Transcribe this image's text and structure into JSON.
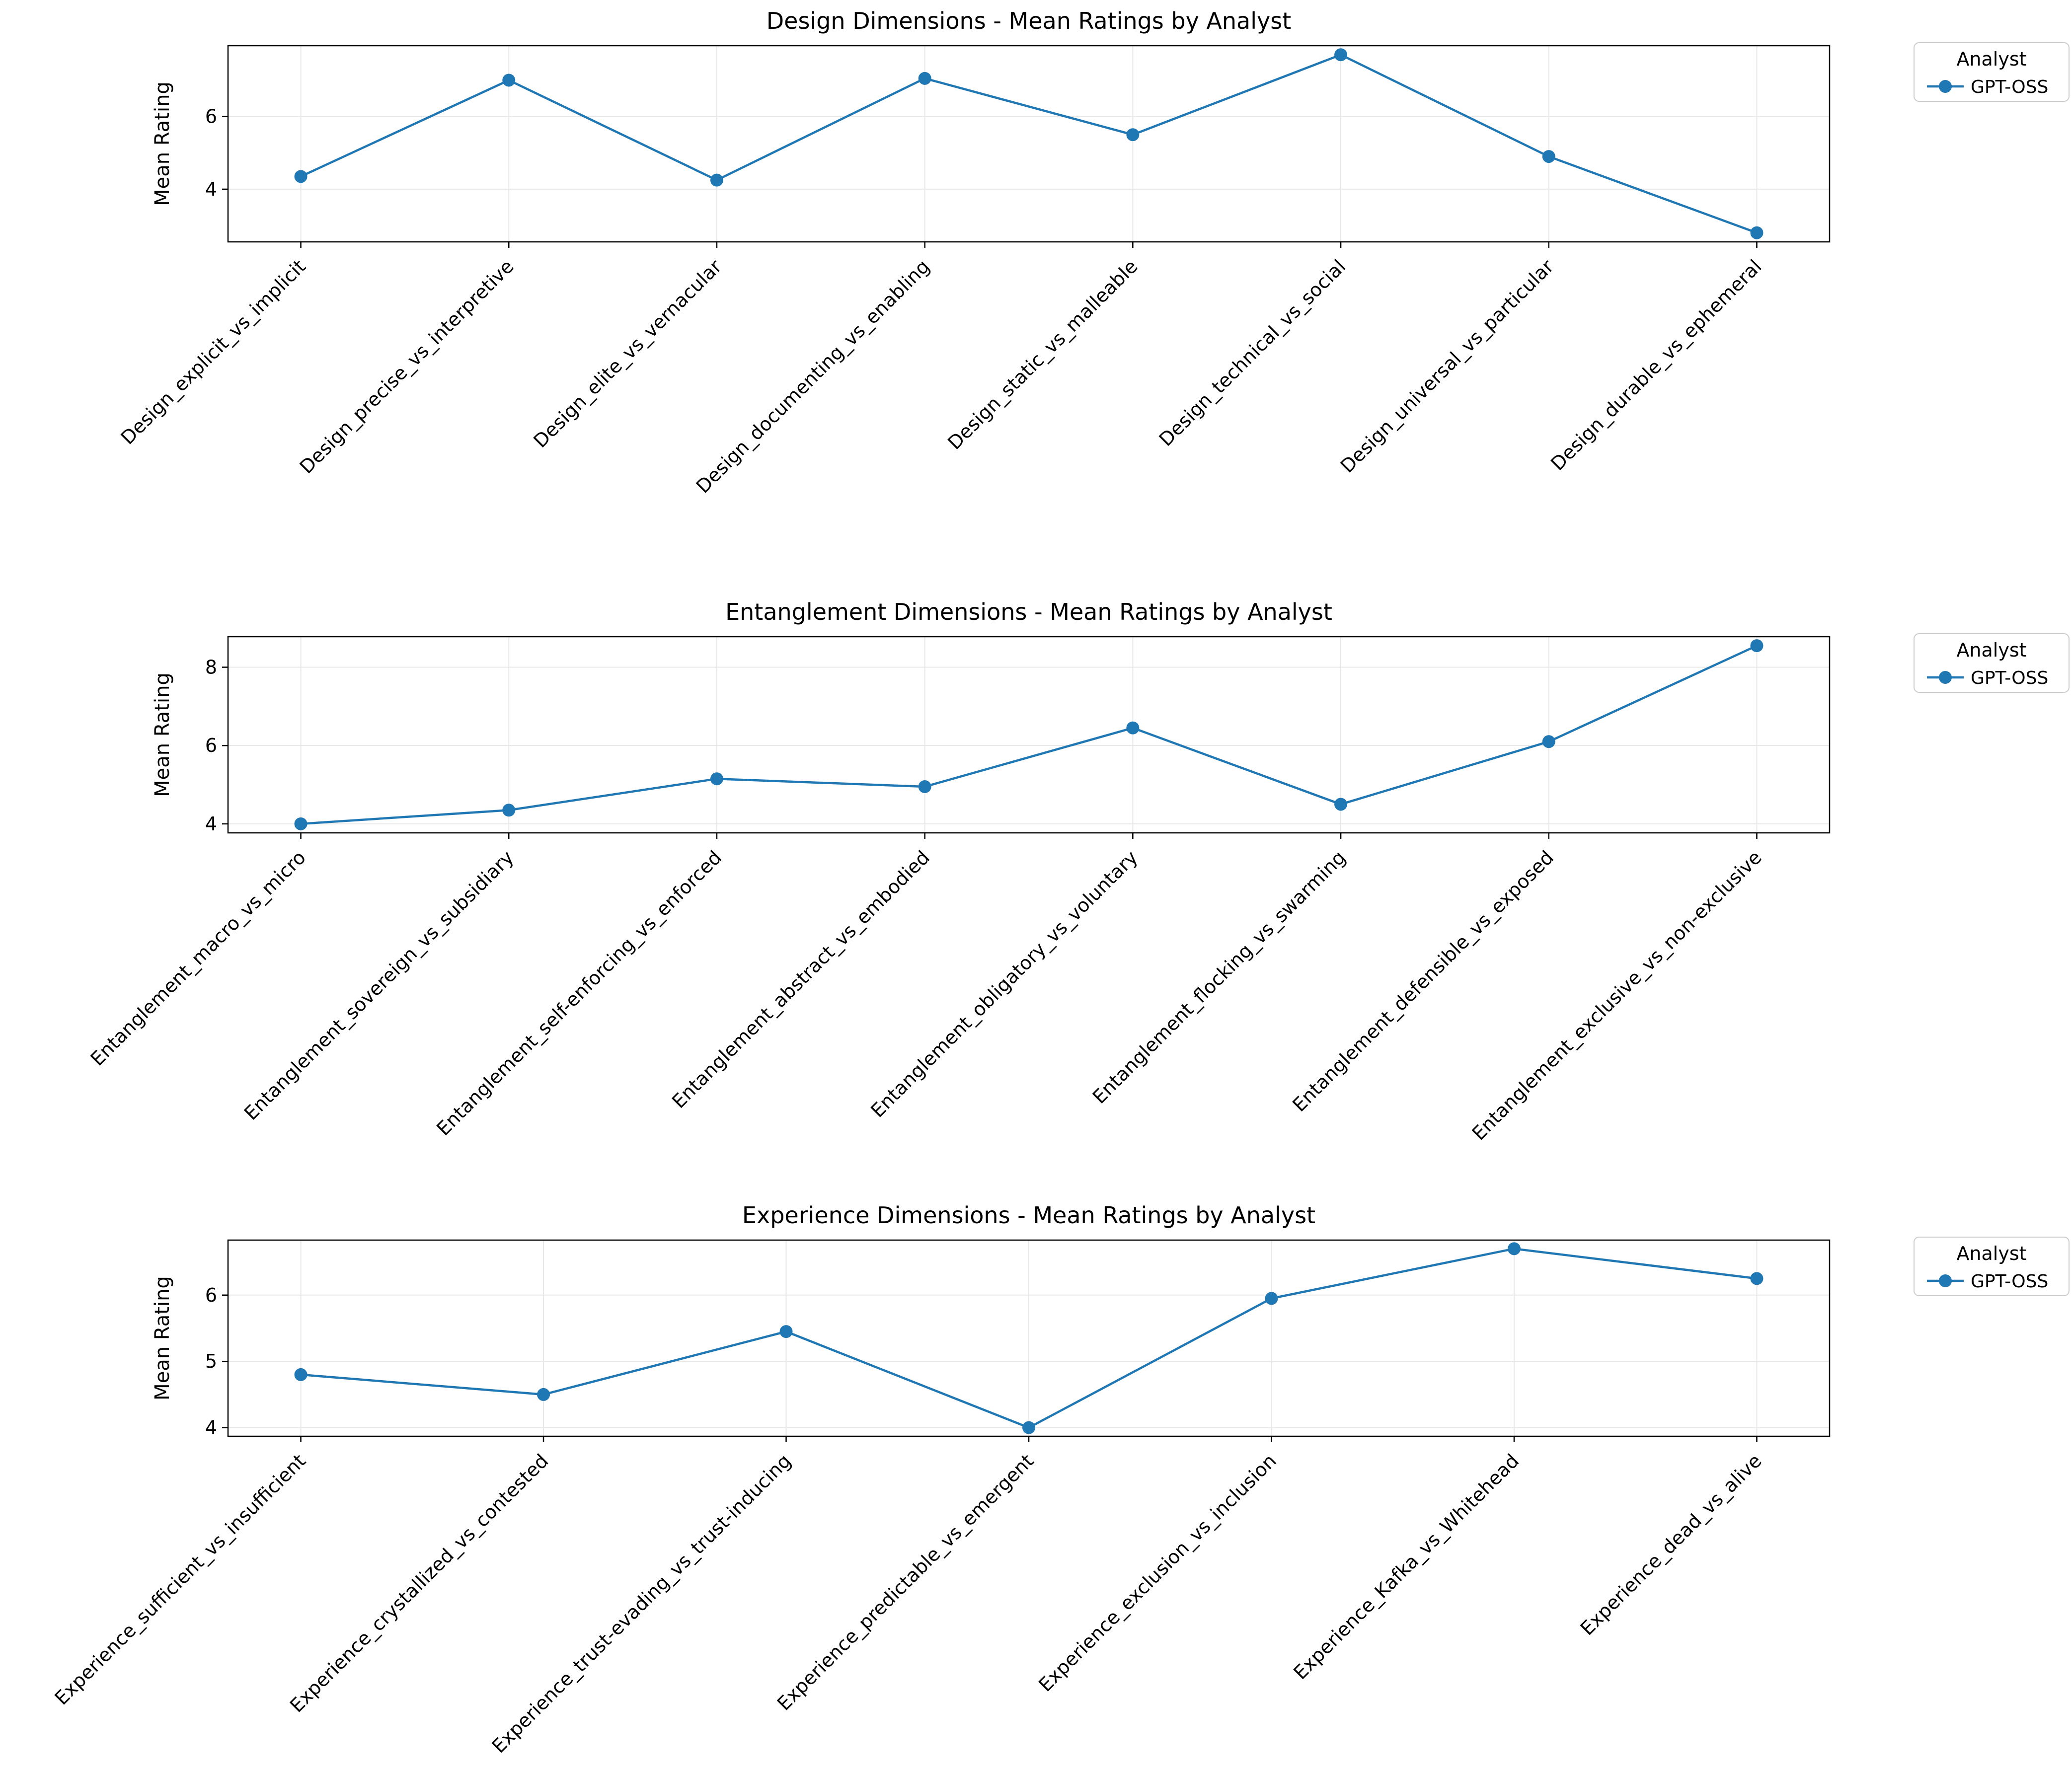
{
  "figure": {
    "background_color": "#ffffff",
    "accent_color": "#1f77b4"
  },
  "chart_data": [
    {
      "type": "line",
      "title": "Design Dimensions - Mean Ratings by Analyst",
      "ylabel": "Mean Rating",
      "legend_title": "Analyst",
      "legend_position": "upper right, outside axes",
      "grid": true,
      "categories": [
        "Design_explicit_vs_implicit",
        "Design_precise_vs_interpretive",
        "Design_elite_vs_vernacular",
        "Design_documenting_vs_enabling",
        "Design_static_vs_malleable",
        "Design_technical_vs_social",
        "Design_universal_vs_particular",
        "Design_durable_vs_ephemeral"
      ],
      "series": [
        {
          "name": "GPT-OSS",
          "color": "#1f77b4",
          "marker": "circle",
          "values": [
            4.35,
            7.0,
            4.25,
            7.05,
            5.5,
            7.7,
            4.9,
            2.8
          ]
        }
      ],
      "ylim": [
        2.55,
        7.95
      ],
      "yticks": [
        4,
        6
      ]
    },
    {
      "type": "line",
      "title": "Entanglement Dimensions - Mean Ratings by Analyst",
      "ylabel": "Mean Rating",
      "legend_title": "Analyst",
      "legend_position": "upper right, outside axes",
      "grid": true,
      "categories": [
        "Entanglement_macro_vs_micro",
        "Entanglement_sovereign_vs_subsidiary",
        "Entanglement_self-enforcing_vs_enforced",
        "Entanglement_abstract_vs_embodied",
        "Entanglement_obligatory_vs_voluntary",
        "Entanglement_flocking_vs_swarming",
        "Entanglement_defensible_vs_exposed",
        "Entanglement_exclusive_vs_non-exclusive"
      ],
      "series": [
        {
          "name": "GPT-OSS",
          "color": "#1f77b4",
          "marker": "circle",
          "values": [
            4.0,
            4.35,
            5.15,
            4.95,
            6.45,
            4.5,
            6.1,
            8.55
          ]
        }
      ],
      "ylim": [
        3.77,
        8.78
      ],
      "yticks": [
        4,
        6,
        8
      ]
    },
    {
      "type": "line",
      "title": "Experience Dimensions - Mean Ratings by Analyst",
      "ylabel": "Mean Rating",
      "legend_title": "Analyst",
      "legend_position": "upper right, outside axes",
      "grid": true,
      "categories": [
        "Experience_sufficient_vs_insufficient",
        "Experience_crystallized_vs_contested",
        "Experience_trust-evading_vs_trust-inducing",
        "Experience_predictable_vs_emergent",
        "Experience_exclusion_vs_inclusion",
        "Experience_Kafka_vs_Whitehead",
        "Experience_dead_vs_alive"
      ],
      "series": [
        {
          "name": "GPT-OSS",
          "color": "#1f77b4",
          "marker": "circle",
          "values": [
            4.8,
            4.5,
            5.45,
            4.0,
            5.95,
            6.7,
            6.25
          ]
        }
      ],
      "ylim": [
        3.87,
        6.83
      ],
      "yticks": [
        4,
        5,
        6
      ]
    }
  ]
}
